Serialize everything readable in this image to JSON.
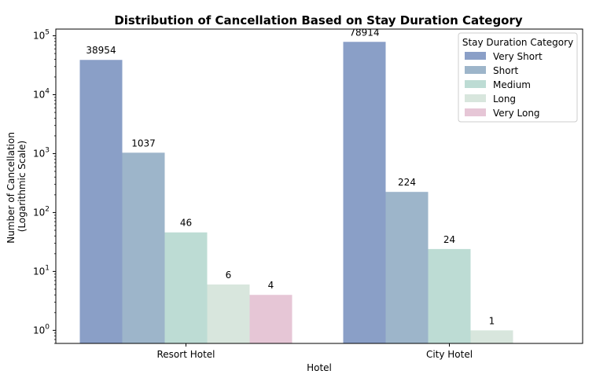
{
  "chart_data": {
    "type": "bar",
    "title": "Distribution of Cancellation Based on Stay Duration Category",
    "xlabel": "Hotel",
    "ylabel_lines": [
      "Number of Cancellation",
      "(Logarithmic Scale)"
    ],
    "yscale": "log",
    "ylim": [
      0.6,
      130000
    ],
    "yticks": [
      1,
      10,
      100,
      1000,
      10000,
      100000
    ],
    "categories": [
      "Resort Hotel",
      "City Hotel"
    ],
    "legend_title": "Stay Duration Category",
    "legend_position": "top-right",
    "series": [
      {
        "name": "Very Short",
        "color": "#8a9fc7",
        "values": [
          38954,
          78914
        ]
      },
      {
        "name": "Short",
        "color": "#9db5ca",
        "values": [
          1037,
          224
        ]
      },
      {
        "name": "Medium",
        "color": "#bddcd4",
        "values": [
          46,
          24
        ]
      },
      {
        "name": "Long",
        "color": "#d8e6dd",
        "values": [
          6,
          1
        ]
      },
      {
        "name": "Very Long",
        "color": "#e6c6d6",
        "values": [
          4,
          null
        ]
      }
    ]
  }
}
